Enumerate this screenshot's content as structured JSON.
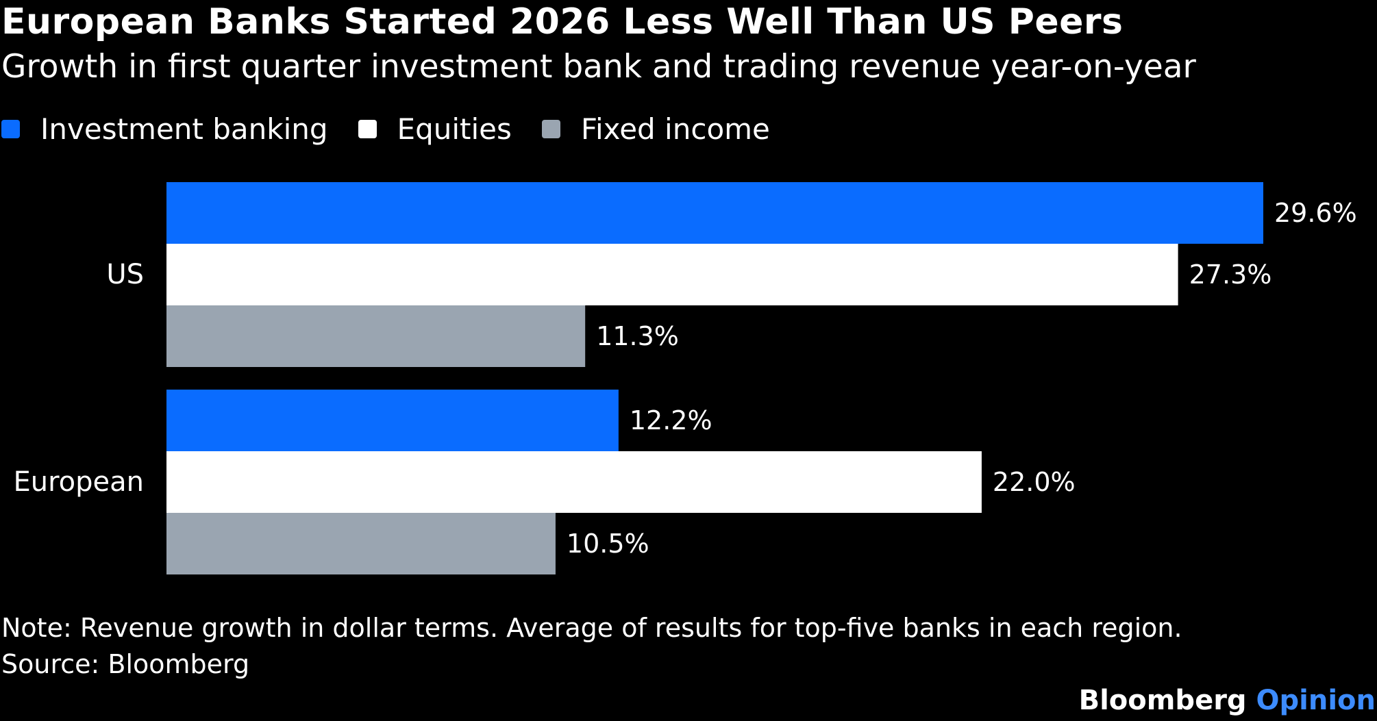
{
  "chart_data": {
    "type": "bar",
    "orientation": "horizontal",
    "title": "European Banks Started 2026 Less Well Than US Peers",
    "subtitle": "Growth in first quarter investment bank and trading revenue year-on-year",
    "categories": [
      "US",
      "European"
    ],
    "series": [
      {
        "name": "Investment banking",
        "color": "#0a6cff",
        "values": [
          29.6,
          12.2
        ]
      },
      {
        "name": "Equities",
        "color": "#ffffff",
        "values": [
          27.3,
          22.0
        ]
      },
      {
        "name": "Fixed income",
        "color": "#9aa5b1",
        "values": [
          11.3,
          10.5
        ]
      }
    ],
    "data_labels": [
      [
        "29.6%",
        "12.2%"
      ],
      [
        "27.3%",
        "22.0%"
      ],
      [
        "11.3%",
        "10.5%"
      ]
    ],
    "xlim": [
      0,
      29.6
    ],
    "grid": false,
    "legend_position": "top-left"
  },
  "footer": {
    "note": "Note: Revenue growth in dollar terms. Average of results for top-five banks in each region.",
    "source": "Source: Bloomberg",
    "brand_name": "Bloomberg",
    "brand_suffix": "Opinion"
  }
}
